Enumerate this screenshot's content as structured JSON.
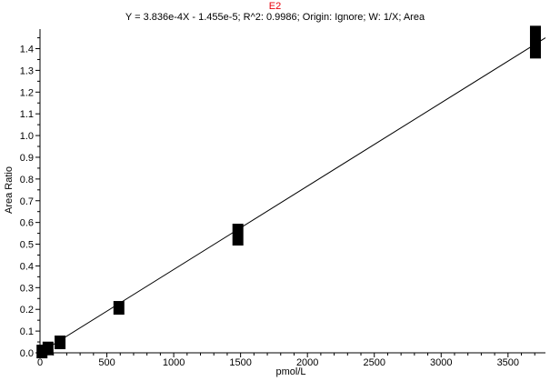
{
  "chart_data": {
    "type": "scatter",
    "title": "E2",
    "subtitle": "Y = 3.836e-4X - 1.455e-5; R^2: 0.9986; Origin: Ignore; W: 1/X; Area",
    "xlabel": "pmol/L",
    "ylabel": "Area Ratio",
    "xlim": [
      0,
      3780
    ],
    "ylim": [
      0,
      1.49
    ],
    "x_ticks": [
      0,
      500,
      1000,
      1500,
      2000,
      2500,
      3000,
      3500
    ],
    "y_ticks": [
      0.0,
      0.1,
      0.2,
      0.3,
      0.4,
      0.5,
      0.6,
      0.7,
      0.8,
      0.9,
      1.0,
      1.1,
      1.2,
      1.3,
      1.4
    ],
    "grid": false,
    "fit": {
      "slope": 0.0003836,
      "intercept": -1.455e-05
    },
    "series": [
      {
        "points": [
          {
            "x": 15,
            "y": 0.006
          },
          {
            "x": 60,
            "y": 0.02
          },
          {
            "x": 150,
            "y": 0.048
          },
          {
            "x": 590,
            "y": 0.207
          },
          {
            "x": 1480,
            "y": 0.544
          },
          {
            "x": 3705,
            "y": 1.43
          }
        ]
      }
    ]
  }
}
